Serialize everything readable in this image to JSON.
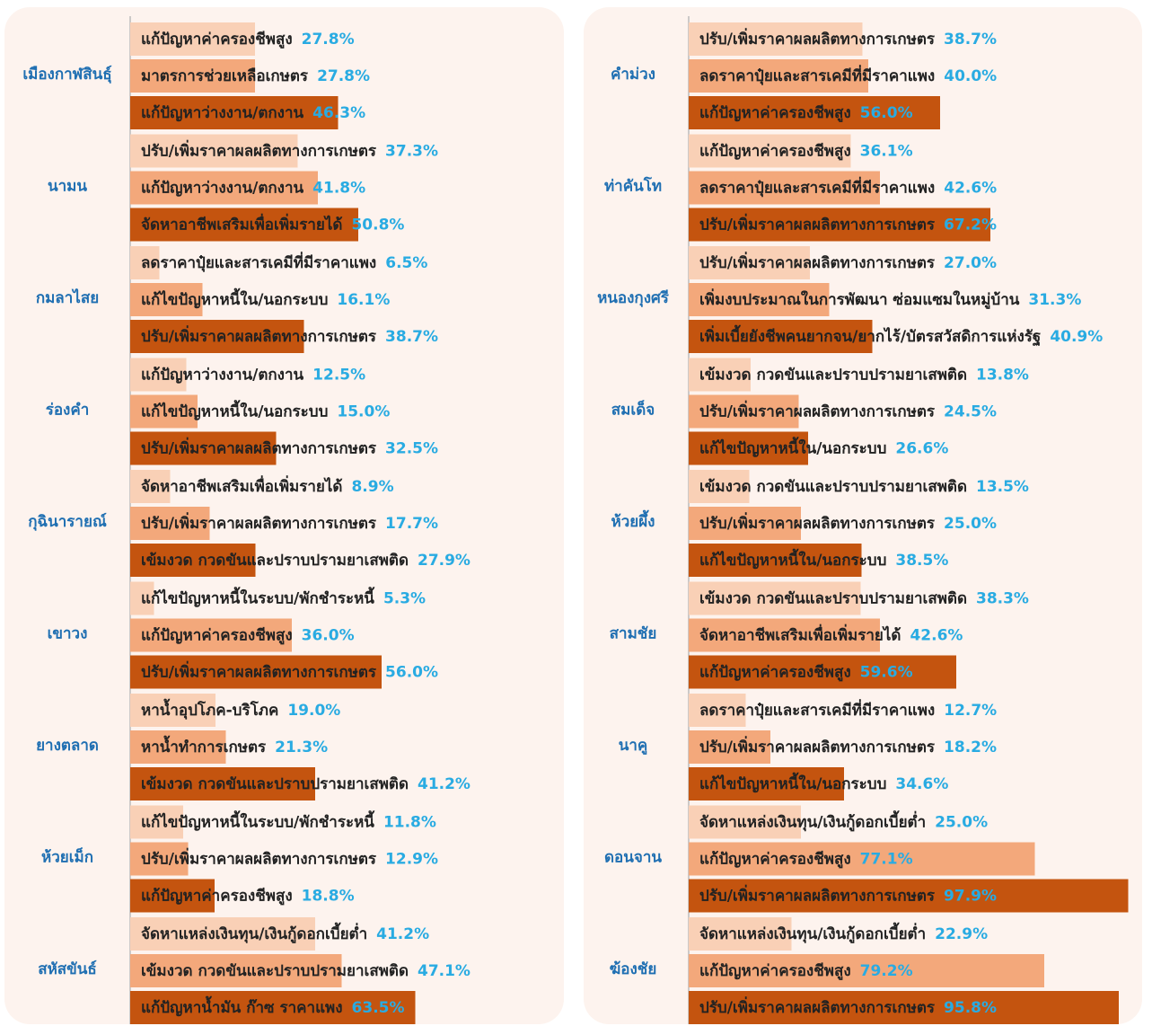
{
  "chart_data": [
    {
      "type": "bar",
      "colors": [
        "#f9d0b6",
        "#f3a87b",
        "#c4540f"
      ],
      "groups": [
        {
          "name": "เมืองกาฬสินธุ์",
          "categories": [
            "แก้ปัญหาค่าครองชีพสูง",
            "มาตรการช่วยเหลือเกษตร",
            "แก้ปัญหาว่างงาน/ตกงาน"
          ],
          "values": [
            27.8,
            27.8,
            46.3
          ],
          "value_labels": [
            "27.8%",
            "27.8%",
            "46.3%"
          ]
        },
        {
          "name": "นามน",
          "categories": [
            "ปรับ/เพิ่มราคาผลผลิตทางการเกษตร",
            "แก้ปัญหาว่างงาน/ตกงาน",
            "จัดหาอาชีพเสริมเพื่อเพิ่มรายได้"
          ],
          "values": [
            37.3,
            41.8,
            50.8
          ],
          "value_labels": [
            "37.3%",
            "41.8%",
            "50.8%"
          ]
        },
        {
          "name": "กมลาไสย",
          "categories": [
            "ลดราคาปุ๋ยและสารเคมีที่มีราคาแพง",
            "แก้ไขปัญหาหนี้ใน/นอกระบบ",
            "ปรับ/เพิ่มราคาผลผลิตทางการเกษตร"
          ],
          "values": [
            6.5,
            16.1,
            38.7
          ],
          "value_labels": [
            "6.5%",
            "16.1%",
            "38.7%"
          ]
        },
        {
          "name": "ร่องคำ",
          "categories": [
            "แก้ปัญหาว่างงาน/ตกงาน",
            "แก้ไขปัญหาหนี้ใน/นอกระบบ",
            "ปรับ/เพิ่มราคาผลผลิตทางการเกษตร"
          ],
          "values": [
            12.5,
            15.0,
            32.5
          ],
          "value_labels": [
            "12.5%",
            "15.0%",
            "32.5%"
          ]
        },
        {
          "name": "กุฉินารายณ์",
          "categories": [
            "จัดหาอาชีพเสริมเพื่อเพิ่มรายได้",
            "ปรับ/เพิ่มราคาผลผลิตทางการเกษตร",
            "เข้มงวด กวดขันและปราบปรามยาเสพติด"
          ],
          "values": [
            8.9,
            17.7,
            27.9
          ],
          "value_labels": [
            "8.9%",
            "17.7%",
            "27.9%"
          ]
        },
        {
          "name": "เขาวง",
          "categories": [
            "แก้ไขปัญหาหนี้ในระบบ/พักชำระหนี้",
            "แก้ปัญหาค่าครองชีพสูง",
            "ปรับ/เพิ่มราคาผลผลิตทางการเกษตร"
          ],
          "values": [
            5.3,
            36.0,
            56.0
          ],
          "value_labels": [
            "5.3%",
            "36.0%",
            "56.0%"
          ]
        },
        {
          "name": "ยางตลาด",
          "categories": [
            "หาน้ำอุปโภค-บริโภค",
            "หาน้ำทำการเกษตร",
            "เข้มงวด กวดขันและปราบปรามยาเสพติด"
          ],
          "values": [
            19.0,
            21.3,
            41.2
          ],
          "value_labels": [
            "19.0%",
            "21.3%",
            "41.2%"
          ]
        },
        {
          "name": "ห้วยเม็ก",
          "categories": [
            "แก้ไขปัญหาหนี้ในระบบ/พักชำระหนี้",
            "ปรับ/เพิ่มราคาผลผลิตทางการเกษตร",
            "แก้ปัญหาค่าครองชีพสูง"
          ],
          "values": [
            11.8,
            12.9,
            18.8
          ],
          "value_labels": [
            "11.8%",
            "12.9%",
            "18.8%"
          ]
        },
        {
          "name": "สหัสขันธ์",
          "categories": [
            "จัดหาแหล่งเงินทุน/เงินกู้ดอกเบี้ยต่ำ",
            "เข้มงวด กวดขันและปราบปรามยาเสพติด",
            "แก้ปัญหาน้ำมัน ก๊าซ ราคาแพง"
          ],
          "values": [
            41.2,
            47.1,
            63.5
          ],
          "value_labels": [
            "41.2%",
            "47.1%",
            "63.5%"
          ]
        }
      ]
    },
    {
      "type": "bar",
      "colors": [
        "#f9d0b6",
        "#f3a87b",
        "#c4540f"
      ],
      "groups": [
        {
          "name": "คำม่วง",
          "categories": [
            "ปรับ/เพิ่มราคาผลผลิตทางการเกษตร",
            "ลดราคาปุ๋ยและสารเคมีที่มีราคาแพง",
            "แก้ปัญหาค่าครองชีพสูง"
          ],
          "values": [
            38.7,
            40.0,
            56.0
          ],
          "value_labels": [
            "38.7%",
            "40.0%",
            "56.0%"
          ]
        },
        {
          "name": "ท่าคันโท",
          "categories": [
            "แก้ปัญหาค่าครองชีพสูง",
            "ลดราคาปุ๋ยและสารเคมีที่มีราคาแพง",
            "ปรับ/เพิ่มราคาผลผลิตทางการเกษตร"
          ],
          "values": [
            36.1,
            42.6,
            67.2
          ],
          "value_labels": [
            "36.1%",
            "42.6%",
            "67.2%"
          ]
        },
        {
          "name": "หนองกุงศรี",
          "categories": [
            "ปรับ/เพิ่มราคาผลผลิตทางการเกษตร",
            "เพิ่มงบประมาณในการพัฒนา ซ่อมแซมในหมู่บ้าน",
            "เพิ่มเบี้ยยังชีพคนยากจน/ยากไร้/บัตรสวัสดิการแห่งรัฐ"
          ],
          "values": [
            27.0,
            31.3,
            40.9
          ],
          "value_labels": [
            "27.0%",
            "31.3%",
            "40.9%"
          ]
        },
        {
          "name": "สมเด็จ",
          "categories": [
            "เข้มงวด กวดขันและปราบปรามยาเสพติด",
            "ปรับ/เพิ่มราคาผลผลิตทางการเกษตร",
            "แก้ไขปัญหาหนี้ใน/นอกระบบ"
          ],
          "values": [
            13.8,
            24.5,
            26.6
          ],
          "value_labels": [
            "13.8%",
            "24.5%",
            "26.6%"
          ]
        },
        {
          "name": "ห้วยผึ้ง",
          "categories": [
            "เข้มงวด กวดขันและปราบปรามยาเสพติด",
            "ปรับ/เพิ่มราคาผลผลิตทางการเกษตร",
            "แก้ไขปัญหาหนี้ใน/นอกระบบ"
          ],
          "values": [
            13.5,
            25.0,
            38.5
          ],
          "value_labels": [
            "13.5%",
            "25.0%",
            "38.5%"
          ]
        },
        {
          "name": "สามชัย",
          "categories": [
            "เข้มงวด กวดขันและปราบปรามยาเสพติด",
            "จัดหาอาชีพเสริมเพื่อเพิ่มรายได้",
            "แก้ปัญหาค่าครองชีพสูง"
          ],
          "values": [
            38.3,
            42.6,
            59.6
          ],
          "value_labels": [
            "38.3%",
            "42.6%",
            "59.6%"
          ]
        },
        {
          "name": "นาคู",
          "categories": [
            "ลดราคาปุ๋ยและสารเคมีที่มีราคาแพง",
            "ปรับ/เพิ่มราคาผลผลิตทางการเกษตร",
            "แก้ไขปัญหาหนี้ใน/นอกระบบ"
          ],
          "values": [
            12.7,
            18.2,
            34.6
          ],
          "value_labels": [
            "12.7%",
            "18.2%",
            "34.6%"
          ]
        },
        {
          "name": "ดอนจาน",
          "categories": [
            "จัดหาแหล่งเงินทุน/เงินกู้ดอกเบี้ยต่ำ",
            "แก้ปัญหาค่าครองชีพสูง",
            "ปรับ/เพิ่มราคาผลผลิตทางการเกษตร"
          ],
          "values": [
            25.0,
            77.1,
            97.9
          ],
          "value_labels": [
            "25.0%",
            "77.1%",
            "97.9%"
          ]
        },
        {
          "name": "ฆ้องชัย",
          "categories": [
            "จัดหาแหล่งเงินทุน/เงินกู้ดอกเบี้ยต่ำ",
            "แก้ปัญหาค่าครองชีพสูง",
            "ปรับ/เพิ่มราคาผลผลิตทางการเกษตร"
          ],
          "values": [
            22.9,
            79.2,
            95.8
          ],
          "value_labels": [
            "22.9%",
            "79.2%",
            "95.8%"
          ]
        }
      ]
    }
  ]
}
